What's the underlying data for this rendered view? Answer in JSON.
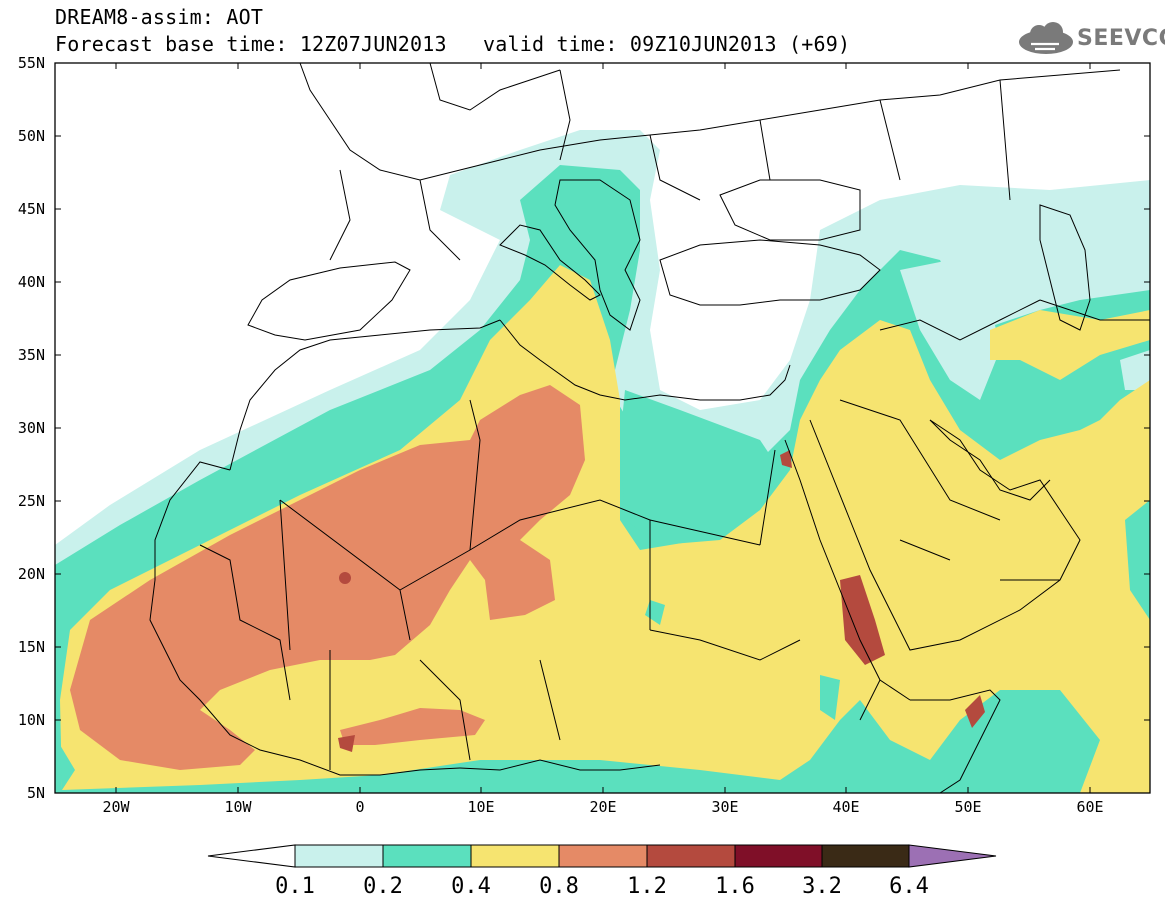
{
  "header": {
    "title_line1": "DREAM8-assim: AOT",
    "base_time": "Forecast base time: 12Z07JUN2013",
    "valid_time": "valid time: 09Z10JUN2013 (+69)"
  },
  "logo": {
    "text": "SEEVCCC",
    "icon": "cloud-icon"
  },
  "map": {
    "lat_labels": [
      "55N",
      "50N",
      "45N",
      "40N",
      "35N",
      "30N",
      "25N",
      "20N",
      "15N",
      "10N",
      "5N"
    ],
    "lon_labels": [
      "20W",
      "10W",
      "0",
      "10E",
      "20E",
      "30E",
      "40E",
      "50E",
      "60E"
    ]
  },
  "colorbar": {
    "labels": [
      "0.1",
      "0.2",
      "0.4",
      "0.8",
      "1.2",
      "1.6",
      "3.2",
      "6.4"
    ],
    "colors": [
      "#c9f1ec",
      "#5be0be",
      "#f6e470",
      "#e58a66",
      "#b44a3e",
      "#7f0f28",
      "#3a2a16",
      "#9c70b4"
    ],
    "under_color": "#ffffff"
  }
}
